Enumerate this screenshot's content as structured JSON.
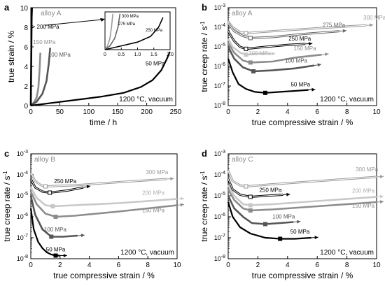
{
  "chart_data": [
    {
      "id": "a",
      "type": "line",
      "panel_label": "a",
      "alloy_label": "alloy A",
      "condition_label": "1200 °C, vacuum",
      "xlabel": "time / h",
      "ylabel": "true strain / %",
      "xlim": [
        0,
        250
      ],
      "ylim": [
        0,
        10
      ],
      "yscale": "linear",
      "xticks": [
        0,
        50,
        100,
        150,
        200,
        250
      ],
      "xtick_labels": [
        "0",
        "50",
        "100",
        "150",
        "200",
        "250"
      ],
      "yticks": [
        0,
        2,
        4,
        6,
        8,
        10
      ],
      "ytick_labels": [
        "0",
        "2",
        "4",
        "6",
        "8",
        "10"
      ],
      "gt200_label": "> 200 MPa",
      "series": [
        {
          "name": "150 MPa",
          "color": "#8c8c8c",
          "x": [
            0,
            5,
            10,
            13,
            15,
            16.5
          ],
          "y": [
            0,
            0.3,
            0.8,
            1.8,
            3.5,
            5.4
          ]
        },
        {
          "name": "100 MPa",
          "color": "#555555",
          "x": [
            0,
            10,
            20,
            27,
            31,
            33.5
          ],
          "y": [
            0,
            0.4,
            1.2,
            2.5,
            4.3,
            5.9
          ]
        },
        {
          "name": "50 MPa",
          "color": "#000000",
          "x": [
            0,
            40,
            80,
            120,
            160,
            190,
            210,
            225,
            235,
            240
          ],
          "y": [
            0,
            0.3,
            0.6,
            0.9,
            1.3,
            1.9,
            2.6,
            3.6,
            4.8,
            5.5
          ]
        },
        {
          "name": "",
          "color": "#000000",
          "x": [
            0,
            0.5,
            1,
            1.5,
            2
          ],
          "y": [
            0,
            3,
            6,
            9,
            10
          ]
        }
      ],
      "inset": {
        "xlim": [
          0,
          2
        ],
        "xticks": [
          0,
          0.5,
          1,
          1.5,
          2
        ],
        "xtick_labels": [
          "0",
          "0.5",
          "1.0",
          "1.5",
          "2.0"
        ],
        "series": [
          {
            "name": "300 MPa",
            "color": "#9a9a9a",
            "x": [
              0,
              0.08,
              0.15,
              0.2,
              0.24
            ],
            "y": [
              0,
              1,
              3,
              6,
              9.5
            ]
          },
          {
            "name": "275 MPa",
            "color": "#666666",
            "x": [
              0,
              0.15,
              0.3,
              0.4,
              0.46
            ],
            "y": [
              0,
              1,
              3,
              6,
              9.5
            ]
          },
          {
            "name": "250 MPa",
            "color": "#000000",
            "x": [
              0,
              0.5,
              1.0,
              1.4,
              1.65,
              1.78
            ],
            "y": [
              0,
              1,
              2,
              3.5,
              6,
              8.5
            ]
          }
        ]
      }
    },
    {
      "id": "b",
      "type": "line",
      "panel_label": "b",
      "alloy_label": "alloy A",
      "condition_label": "1200 °C, vacuum",
      "xlabel": "true compressive strain / %",
      "ylabel": "true creep rate / s",
      "ylabel_sup": "-1",
      "xlim": [
        0,
        10
      ],
      "ylim": [
        1e-08,
        0.001
      ],
      "yscale": "log",
      "xticks": [
        0,
        2,
        4,
        6,
        8,
        10
      ],
      "xtick_labels": [
        "0",
        "2",
        "4",
        "6",
        "8",
        "10"
      ],
      "yticks": [
        -8,
        -7,
        -6,
        -5,
        -4,
        -3
      ],
      "ytick_labels": [
        "-8",
        "-7",
        "-6",
        "-5",
        "-4",
        "-3"
      ],
      "series": [
        {
          "name": "300 MPa",
          "color": "#9a9a9a",
          "x": [
            0,
            0.3,
            0.8,
            1.2,
            3,
            6,
            9.3
          ],
          "y": [
            -3.7,
            -4.0,
            -4.25,
            -4.3,
            -4.2,
            -4.05,
            -3.9
          ]
        },
        {
          "name": "275 MPa",
          "color": "#666666",
          "x": [
            0,
            0.4,
            1.0,
            1.5,
            3,
            5,
            7.5
          ],
          "y": [
            -3.8,
            -4.2,
            -4.45,
            -4.55,
            -4.5,
            -4.35,
            -4.2
          ]
        },
        {
          "name": "250 MPa",
          "color": "#000000",
          "x": [
            0,
            0.4,
            0.8,
            1.2,
            2.5,
            4,
            5.2
          ],
          "y": [
            -4.2,
            -4.7,
            -5.0,
            -5.1,
            -5.0,
            -4.9,
            -4.85
          ]
        },
        {
          "name": "200 MPa",
          "color": "#c8c8c8",
          "x": [
            0,
            0.3,
            0.8,
            1.2,
            2,
            2.7
          ],
          "y": [
            -4.6,
            -5.0,
            -5.3,
            -5.4,
            -5.35,
            -5.35
          ]
        },
        {
          "name": "150 MPa",
          "color": "#8c8c8c",
          "x": [
            0,
            0.4,
            1.0,
            1.5,
            3,
            4.5,
            6.3
          ],
          "y": [
            -4.8,
            -5.3,
            -5.7,
            -5.8,
            -5.75,
            -5.55,
            -5.4
          ]
        },
        {
          "name": "100 MPa",
          "color": "#555555",
          "x": [
            0,
            0.4,
            1.0,
            1.7,
            3,
            4.5,
            5.8
          ],
          "y": [
            -5.0,
            -5.6,
            -6.05,
            -6.25,
            -6.2,
            -6.1,
            -5.95
          ]
        },
        {
          "name": "50 MPa",
          "color": "#000000",
          "x": [
            0,
            0.3,
            0.7,
            1.2,
            1.8,
            2.5,
            3.5,
            4.5,
            5.4
          ],
          "y": [
            -5.6,
            -6.3,
            -6.9,
            -7.15,
            -7.3,
            -7.35,
            -7.3,
            -7.25,
            -7.2
          ]
        }
      ]
    },
    {
      "id": "c",
      "type": "line",
      "panel_label": "c",
      "alloy_label": "alloy B",
      "condition_label": "1200 °C, vacuum",
      "xlabel": "true compressive strain / %",
      "ylabel": "true creep rate / s",
      "ylabel_sup": "-1",
      "xlim": [
        0,
        10
      ],
      "ylim": [
        1e-08,
        0.001
      ],
      "yscale": "log",
      "xticks": [
        0,
        2,
        4,
        6,
        8,
        10
      ],
      "xtick_labels": [
        "0",
        "2",
        "4",
        "6",
        "8",
        "10"
      ],
      "yticks": [
        -8,
        -7,
        -6,
        -5,
        -4,
        -3
      ],
      "ytick_labels": [
        "-8",
        "-7",
        "-6",
        "-5",
        "-4",
        "-3"
      ],
      "series": [
        {
          "name": "300 MPa",
          "color": "#9a9a9a",
          "x": [
            0,
            0.3,
            0.7,
            1.0,
            3,
            6,
            9.3
          ],
          "y": [
            -3.9,
            -4.3,
            -4.5,
            -4.55,
            -4.5,
            -4.35,
            -4.2
          ]
        },
        {
          "name": "250 MPa",
          "color": "#000000",
          "x": [
            0,
            0.3,
            0.8,
            1.3,
            2.5,
            3.6
          ],
          "y": [
            -4.2,
            -4.6,
            -4.8,
            -4.85,
            -4.75,
            -4.6
          ]
        },
        {
          "name": "200 MPa",
          "color": "#c8c8c8",
          "x": [
            0,
            0.4,
            1.0,
            1.5,
            3,
            6,
            10
          ],
          "y": [
            -4.6,
            -5.1,
            -5.45,
            -5.5,
            -5.45,
            -5.35,
            -5.15
          ]
        },
        {
          "name": "150 MPa",
          "color": "#8c8c8c",
          "x": [
            0,
            0.4,
            1.0,
            1.7,
            3,
            6,
            10
          ],
          "y": [
            -4.8,
            -5.4,
            -5.85,
            -6.0,
            -5.95,
            -5.75,
            -5.45
          ]
        },
        {
          "name": "100 MPa",
          "color": "#555555",
          "x": [
            0,
            0.3,
            0.8,
            1.4,
            2.2,
            3.2
          ],
          "y": [
            -5.0,
            -5.9,
            -6.6,
            -6.95,
            -6.95,
            -6.9
          ]
        },
        {
          "name": "50 MPa",
          "color": "#000000",
          "x": [
            0,
            0.2,
            0.5,
            0.8,
            1.1,
            1.4,
            1.7,
            2.0
          ],
          "y": [
            -5.6,
            -6.6,
            -7.2,
            -7.5,
            -7.7,
            -7.8,
            -7.85,
            -7.85
          ]
        }
      ]
    },
    {
      "id": "d",
      "type": "line",
      "panel_label": "d",
      "alloy_label": "alloy C",
      "condition_label": "1200 °C, vacuum",
      "xlabel": "true compressive strain / %",
      "ylabel": "true creep rate / s",
      "ylabel_sup": "-1",
      "xlim": [
        0,
        10
      ],
      "ylim": [
        1e-08,
        0.001
      ],
      "yscale": "log",
      "xticks": [
        0,
        2,
        4,
        6,
        8,
        10
      ],
      "xtick_labels": [
        "0",
        "2",
        "4",
        "6",
        "8",
        "10"
      ],
      "yticks": [
        -8,
        -7,
        -6,
        -5,
        -4,
        -3
      ],
      "ytick_labels": [
        "-8",
        "-7",
        "-6",
        "-5",
        "-4",
        "-3"
      ],
      "series": [
        {
          "name": "300 MPa",
          "color": "#9a9a9a",
          "x": [
            0,
            0.3,
            0.8,
            1.2,
            3,
            6,
            10
          ],
          "y": [
            -3.8,
            -4.3,
            -4.5,
            -4.55,
            -4.45,
            -4.3,
            -4.1
          ]
        },
        {
          "name": "250 MPa",
          "color": "#000000",
          "x": [
            0,
            0.3,
            0.8,
            1.5,
            2.5,
            3.7
          ],
          "y": [
            -4.2,
            -4.7,
            -4.95,
            -5.05,
            -5.0,
            -4.95
          ]
        },
        {
          "name": "200 MPa",
          "color": "#c8c8c8",
          "x": [
            0,
            0.4,
            1.0,
            1.5,
            3,
            6,
            10
          ],
          "y": [
            -4.5,
            -5.0,
            -5.4,
            -5.45,
            -5.4,
            -5.25,
            -5.05
          ]
        },
        {
          "name": "150 MPa",
          "color": "#8c8c8c",
          "x": [
            0,
            0.4,
            1.0,
            1.5,
            3,
            6,
            10
          ],
          "y": [
            -4.7,
            -5.2,
            -5.6,
            -5.7,
            -5.65,
            -5.5,
            -5.3
          ]
        },
        {
          "name": "100 MPa",
          "color": "#555555",
          "x": [
            0,
            0.4,
            1.0,
            1.6,
            2.5,
            3.5,
            4.4
          ],
          "y": [
            -5.0,
            -5.6,
            -6.0,
            -6.3,
            -6.35,
            -6.3,
            -6.25
          ]
        },
        {
          "name": "50 MPa",
          "color": "#000000",
          "x": [
            0,
            0.3,
            0.8,
            1.5,
            2.5,
            3.5,
            4.5,
            5.6
          ],
          "y": [
            -5.3,
            -6.0,
            -6.5,
            -6.8,
            -7.0,
            -7.05,
            -7.05,
            -7.0
          ]
        }
      ]
    }
  ]
}
